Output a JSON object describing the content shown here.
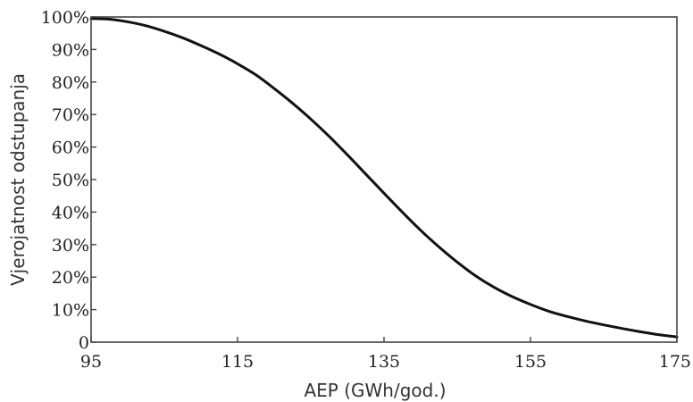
{
  "chart_data": {
    "type": "line",
    "xlabel": "AEP (GWh/god.)",
    "ylabel": "Vjerojatnost odstupanja",
    "xlim": [
      95,
      175
    ],
    "ylim": [
      0,
      100
    ],
    "x_ticks": [
      95,
      115,
      135,
      155,
      175
    ],
    "x_tick_labels": [
      "95",
      "115",
      "135",
      "155",
      "175"
    ],
    "y_ticks": [
      0,
      10,
      20,
      30,
      40,
      50,
      60,
      70,
      80,
      90,
      100
    ],
    "y_tick_labels": [
      "0",
      "10%",
      "20%",
      "30%",
      "40%",
      "50%",
      "60%",
      "70%",
      "80%",
      "90%",
      "100%"
    ],
    "grid": false,
    "series": [
      {
        "x": [
          95,
          97.5,
          100,
          102.5,
          105,
          107.5,
          110,
          112.5,
          115,
          117.5,
          120,
          122.5,
          125,
          127.5,
          130,
          132.5,
          135,
          137.5,
          140,
          142.5,
          145,
          147.5,
          150,
          152.5,
          155,
          157.5,
          160,
          162.5,
          165,
          167.5,
          170,
          172.5,
          175
        ],
        "y": [
          99.5,
          99.3,
          98.5,
          97.3,
          95.6,
          93.6,
          91.2,
          88.6,
          85.6,
          82.2,
          78.0,
          73.5,
          68.6,
          63.3,
          57.6,
          51.7,
          45.8,
          40.0,
          34.4,
          29.3,
          24.6,
          20.4,
          16.9,
          14.0,
          11.6,
          9.5,
          7.9,
          6.5,
          5.3,
          4.2,
          3.2,
          2.3,
          1.6
        ],
        "color": "#111111"
      }
    ]
  }
}
